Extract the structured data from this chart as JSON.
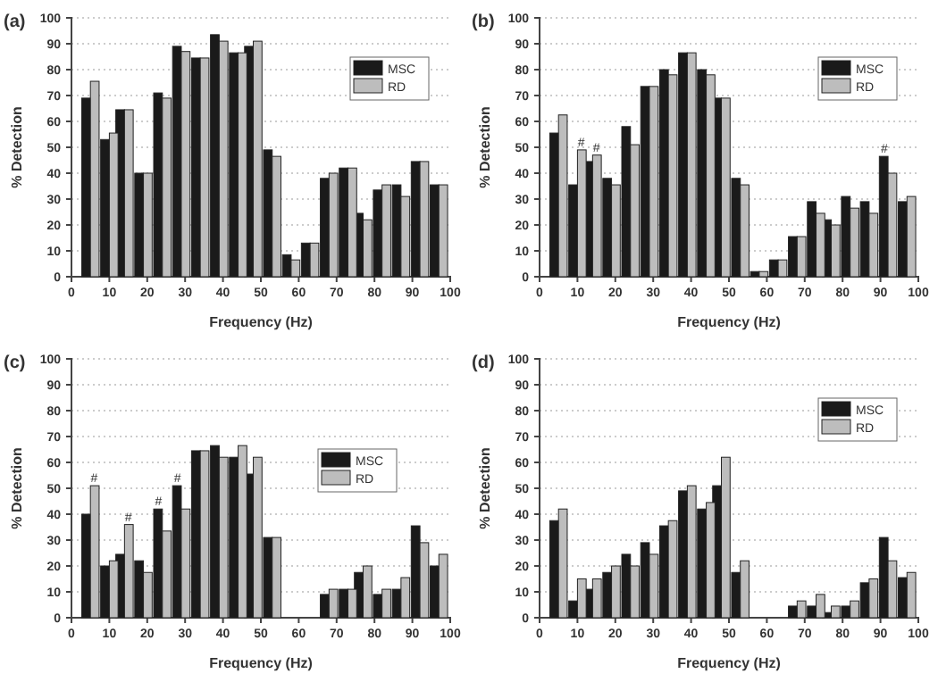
{
  "chart_data": [
    {
      "type": "bar",
      "title": "(a)",
      "xlabel": "Frequency (Hz)",
      "ylabel": "% Detection",
      "x": [
        5,
        10,
        14,
        19,
        24,
        29,
        34,
        39,
        44,
        48,
        53,
        58,
        63,
        68,
        73,
        77,
        82,
        87,
        92,
        97
      ],
      "series": [
        {
          "name": "MSC",
          "color": "#1a1a1a",
          "values": [
            69,
            53,
            64.5,
            40,
            71,
            89,
            84.5,
            93.5,
            86.5,
            89,
            49,
            8.5,
            13,
            38,
            42,
            24.5,
            33.5,
            35.5,
            44.5,
            35.5
          ]
        },
        {
          "name": "RD",
          "color": "#bdbdbd",
          "values": [
            75.5,
            55.5,
            64.5,
            40,
            69,
            87,
            84.5,
            91,
            86.5,
            91,
            46.5,
            6.5,
            13,
            40,
            42,
            22,
            35.5,
            31,
            44.5,
            35.5
          ]
        }
      ],
      "xlim": [
        0,
        100
      ],
      "xticks": [
        0,
        10,
        20,
        30,
        40,
        50,
        60,
        70,
        80,
        90,
        100
      ],
      "ylim": [
        0,
        100
      ],
      "yticks": [
        0,
        10,
        20,
        30,
        40,
        50,
        60,
        70,
        80,
        90,
        100
      ],
      "grid": "y",
      "legend": "top right"
    },
    {
      "type": "bar",
      "title": "(b)",
      "xlabel": "Frequency (Hz)",
      "ylabel": "% Detection",
      "x": [
        5,
        10,
        14,
        19,
        24,
        29,
        34,
        39,
        44,
        48,
        53,
        58,
        63,
        68,
        73,
        77,
        82,
        87,
        92,
        97
      ],
      "series": [
        {
          "name": "MSC",
          "color": "#1a1a1a",
          "values": [
            55.5,
            35.5,
            44.5,
            38,
            58,
            73.5,
            80,
            86.5,
            80,
            69,
            38,
            2,
            6.5,
            15.5,
            29,
            22,
            31,
            29,
            46.5,
            29
          ]
        },
        {
          "name": "RD",
          "color": "#bdbdbd",
          "values": [
            62.5,
            49,
            47,
            35.5,
            51,
            73.5,
            78,
            86.5,
            78,
            69,
            35.5,
            2,
            6.5,
            15.5,
            24.5,
            20,
            26.5,
            24.5,
            40,
            31
          ]
        }
      ],
      "annotations": [
        {
          "text": "#",
          "x": 11,
          "y": 49
        },
        {
          "text": "#",
          "x": 15,
          "y": 47
        },
        {
          "text": "#",
          "x": 91,
          "y": 46.5
        }
      ],
      "xlim": [
        0,
        100
      ],
      "xticks": [
        0,
        10,
        20,
        30,
        40,
        50,
        60,
        70,
        80,
        90,
        100
      ],
      "ylim": [
        0,
        100
      ],
      "yticks": [
        0,
        10,
        20,
        30,
        40,
        50,
        60,
        70,
        80,
        90,
        100
      ],
      "grid": "y",
      "legend": "top right"
    },
    {
      "type": "bar",
      "title": "(c)",
      "xlabel": "Frequency (Hz)",
      "ylabel": "% Detection",
      "x": [
        5,
        10,
        14,
        19,
        24,
        29,
        34,
        39,
        44,
        48,
        53,
        58,
        63,
        68,
        73,
        77,
        82,
        87,
        92,
        97
      ],
      "series": [
        {
          "name": "MSC",
          "color": "#1a1a1a",
          "values": [
            40,
            20,
            24.5,
            22,
            42,
            51,
            64.5,
            66.5,
            62,
            55.5,
            31,
            null,
            null,
            9,
            11,
            17.5,
            9,
            11,
            35.5,
            20
          ]
        },
        {
          "name": "RD",
          "color": "#bdbdbd",
          "values": [
            51,
            22,
            36,
            17.5,
            33.5,
            42,
            64.5,
            62,
            66.5,
            62,
            31,
            null,
            null,
            11,
            11,
            20,
            11,
            15.5,
            29,
            24.5
          ]
        }
      ],
      "annotations": [
        {
          "text": "#",
          "x": 6,
          "y": 51
        },
        {
          "text": "#",
          "x": 15,
          "y": 36
        },
        {
          "text": "#",
          "x": 23,
          "y": 42
        },
        {
          "text": "#",
          "x": 28,
          "y": 51
        }
      ],
      "xlim": [
        0,
        100
      ],
      "xticks": [
        0,
        10,
        20,
        30,
        40,
        50,
        60,
        70,
        80,
        90,
        100
      ],
      "ylim": [
        0,
        100
      ],
      "yticks": [
        0,
        10,
        20,
        30,
        40,
        50,
        60,
        70,
        80,
        90,
        100
      ],
      "grid": "y",
      "legend": "right"
    },
    {
      "type": "bar",
      "title": "(d)",
      "xlabel": "Frequency (Hz)",
      "ylabel": "% Detection",
      "x": [
        5,
        10,
        14,
        19,
        24,
        29,
        34,
        39,
        44,
        48,
        53,
        58,
        63,
        68,
        73,
        77,
        82,
        87,
        92,
        97
      ],
      "series": [
        {
          "name": "MSC",
          "color": "#1a1a1a",
          "values": [
            37.5,
            6.5,
            11,
            17.5,
            24.5,
            29,
            35.5,
            49,
            42,
            51,
            17.5,
            null,
            null,
            4.5,
            4.5,
            2,
            4.5,
            13.5,
            31,
            15.5
          ]
        },
        {
          "name": "RD",
          "color": "#bdbdbd",
          "values": [
            42,
            15,
            15,
            20,
            20,
            24.5,
            37.5,
            51,
            44.5,
            62,
            22,
            null,
            null,
            6.5,
            9,
            4.5,
            6.5,
            15,
            22,
            17.5
          ]
        }
      ],
      "xlim": [
        0,
        100
      ],
      "xticks": [
        0,
        10,
        20,
        30,
        40,
        50,
        60,
        70,
        80,
        90,
        100
      ],
      "ylim": [
        0,
        100
      ],
      "yticks": [
        0,
        10,
        20,
        30,
        40,
        50,
        60,
        70,
        80,
        90,
        100
      ],
      "grid": "y",
      "legend": "top right"
    }
  ]
}
